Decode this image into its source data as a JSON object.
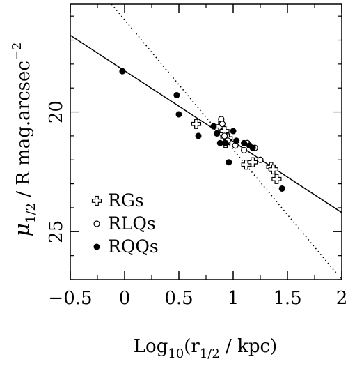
{
  "chart_data": {
    "type": "scatter",
    "xlabel": {
      "base": "Log",
      "sub1": "10",
      "mid": "(r",
      "sub2": "1/2",
      "end": " / kpc)"
    },
    "ylabel": {
      "base": "μ",
      "sub": "1/2",
      "end": " / R mag.arcsec",
      "sup": "−2"
    },
    "xlim": [
      -0.5,
      2.0
    ],
    "ylim": [
      27.0,
      15.5
    ],
    "x_ticks": [
      -0.5,
      0,
      0.5,
      1,
      1.5,
      2
    ],
    "x_tick_labels": [
      "−0.5",
      "0",
      "0.5",
      "1",
      "1.5",
      "2"
    ],
    "y_ticks": [
      20,
      25
    ],
    "y_tick_labels": [
      "20",
      "25"
    ],
    "series": [
      {
        "name": "RGs",
        "marker": "open-cross",
        "points": [
          [
            0.66,
            20.5
          ],
          [
            0.88,
            20.6
          ],
          [
            0.9,
            20.9
          ],
          [
            0.92,
            20.8
          ],
          [
            0.93,
            21.3
          ],
          [
            0.95,
            21.1
          ],
          [
            1.12,
            22.2
          ],
          [
            1.18,
            22.1
          ],
          [
            1.35,
            22.3
          ],
          [
            1.37,
            22.4
          ],
          [
            1.4,
            22.8
          ]
        ]
      },
      {
        "name": "RLQs",
        "marker": "open-circle",
        "points": [
          [
            0.89,
            20.3
          ],
          [
            0.9,
            20.5
          ],
          [
            0.92,
            21.0
          ],
          [
            0.95,
            21.2
          ],
          [
            1.02,
            21.4
          ],
          [
            1.1,
            21.6
          ],
          [
            1.13,
            21.3
          ],
          [
            1.2,
            21.5
          ],
          [
            1.25,
            22.0
          ]
        ]
      },
      {
        "name": "RQQs",
        "marker": "filled-circle",
        "points": [
          [
            -0.02,
            18.3
          ],
          [
            0.48,
            19.3
          ],
          [
            0.5,
            20.1
          ],
          [
            0.68,
            21.0
          ],
          [
            0.82,
            20.6
          ],
          [
            0.85,
            20.9
          ],
          [
            0.88,
            21.3
          ],
          [
            0.93,
            21.3
          ],
          [
            0.96,
            22.1
          ],
          [
            1.0,
            20.8
          ],
          [
            1.03,
            21.2
          ],
          [
            1.1,
            21.3
          ],
          [
            1.15,
            21.4
          ],
          [
            1.18,
            21.5
          ],
          [
            1.45,
            23.2
          ]
        ]
      }
    ],
    "lines": [
      {
        "style": "solid",
        "x": [
          -0.5,
          2.0
        ],
        "y": [
          16.8,
          24.2
        ]
      },
      {
        "style": "dotted",
        "x": [
          -0.12,
          2.0
        ],
        "y": [
          15.5,
          27.0
        ]
      }
    ],
    "legend": {
      "placement": "bottom-left",
      "entries": [
        "RGs",
        "RLQs",
        "RQQs"
      ]
    },
    "grid": false
  }
}
